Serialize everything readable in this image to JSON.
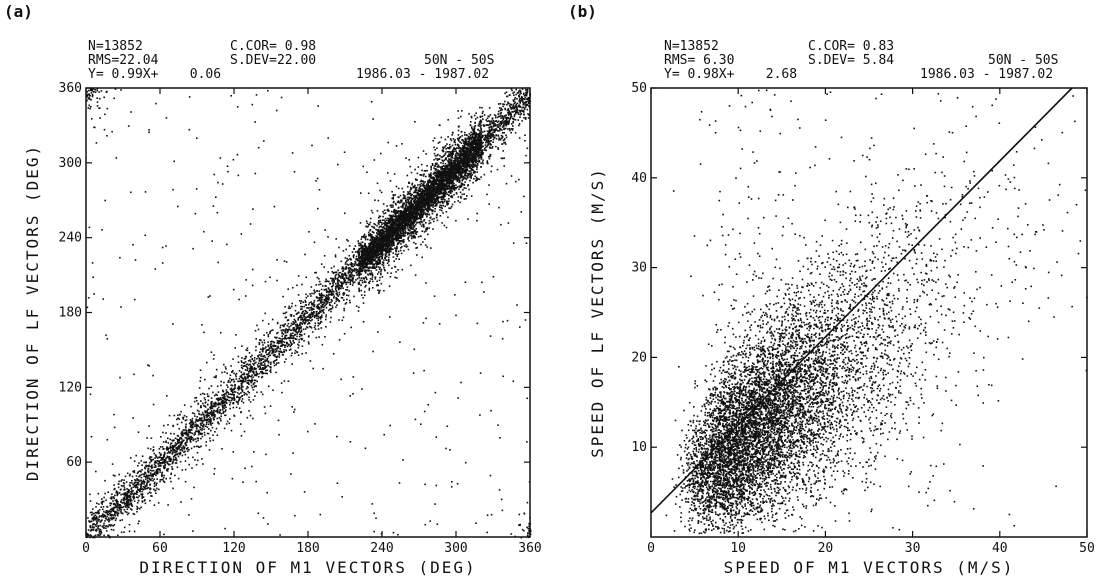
{
  "panel_a": {
    "label": "(a)",
    "stats": {
      "n": "N=13852",
      "ccor": "C.COR= 0.98",
      "rms": "RMS=22.04",
      "sdev": "S.DEV=22.00",
      "region": "50N - 50S",
      "fit": "Y= 0.99X+    0.06",
      "period": "1986.03 - 1987.02"
    }
  },
  "panel_b": {
    "label": "(b)",
    "stats": {
      "n": "N=13852",
      "ccor": "C.COR= 0.83",
      "rms": "RMS= 6.30",
      "sdev": "S.DEV= 5.84",
      "region": "50N - 50S",
      "fit": "Y= 0.98X+    2.68",
      "period": "1986.03 - 1987.02"
    }
  },
  "chart_data": [
    {
      "type": "scatter",
      "title": "",
      "xlabel": "DIRECTION OF M1 VECTORS (DEG)",
      "ylabel": "DIRECTION OF LF VECTORS (DEG)",
      "xlim": [
        0,
        360
      ],
      "ylim": [
        0,
        360
      ],
      "xticks": [
        "0",
        "60",
        "120",
        "180",
        "240",
        "300",
        "360"
      ],
      "yticks": [
        "60",
        "120",
        "180",
        "240",
        "300",
        "360"
      ],
      "n_points": 13852,
      "correlation": 0.98,
      "rms": 22.04,
      "std_dev": 22.0,
      "regression": {
        "slope": 0.99,
        "intercept": 0.06
      },
      "grid": false,
      "fit_line": false
    },
    {
      "type": "scatter",
      "title": "",
      "xlabel": "SPEED OF M1 VECTORS (M/S)",
      "ylabel": "SPEED OF LF VECTORS (M/S)",
      "xlim": [
        0,
        50
      ],
      "ylim": [
        0,
        50
      ],
      "xticks": [
        "0",
        "10",
        "20",
        "30",
        "40",
        "50"
      ],
      "yticks": [
        "10",
        "20",
        "30",
        "40",
        "50"
      ],
      "n_points": 13852,
      "correlation": 0.83,
      "rms": 6.3,
      "std_dev": 5.84,
      "regression": {
        "slope": 0.98,
        "intercept": 2.68
      },
      "grid": false,
      "fit_line": true
    }
  ]
}
